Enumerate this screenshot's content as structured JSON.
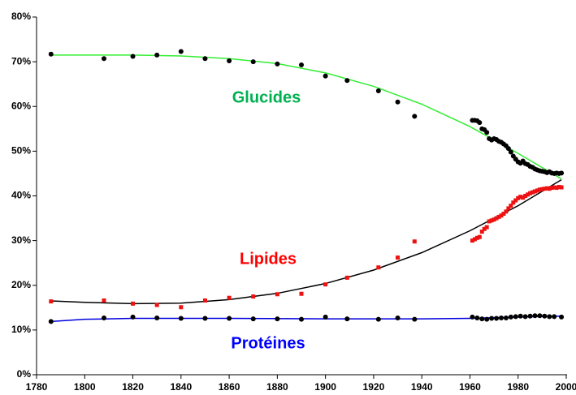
{
  "chart_data": {
    "type": "scatter",
    "xlim": [
      1780,
      2000
    ],
    "ylim": [
      0,
      80
    ],
    "xticks": [
      1780,
      1800,
      1820,
      1840,
      1860,
      1880,
      1900,
      1920,
      1940,
      1960,
      1980,
      2000
    ],
    "yticks": [
      {
        "value": 0,
        "label": "0%"
      },
      {
        "value": 10,
        "label": "10%"
      },
      {
        "value": 20,
        "label": "20%"
      },
      {
        "value": 30,
        "label": "30%"
      },
      {
        "value": 40,
        "label": "40%"
      },
      {
        "value": 50,
        "label": "50%"
      },
      {
        "value": 60,
        "label": "60%"
      },
      {
        "value": 70,
        "label": "70%"
      },
      {
        "value": 80,
        "label": "80%"
      }
    ],
    "grid": false,
    "series": [
      {
        "name": "Glucides",
        "color": "#00b050",
        "marker": "circle",
        "marker_color": "#000000",
        "x": [
          1786,
          1808,
          1820,
          1830,
          1840,
          1850,
          1860,
          1870,
          1880,
          1890,
          1900,
          1909,
          1922,
          1930,
          1937,
          1961,
          1962,
          1963,
          1964,
          1965,
          1966,
          1967,
          1968,
          1969,
          1970,
          1971,
          1972,
          1973,
          1974,
          1975,
          1976,
          1977,
          1978,
          1979,
          1980,
          1981,
          1982,
          1983,
          1984,
          1985,
          1986,
          1987,
          1988,
          1989,
          1990,
          1991,
          1992,
          1993,
          1994,
          1995,
          1996,
          1997,
          1998
        ],
        "values": [
          71.7,
          70.7,
          71.2,
          71.5,
          72.3,
          70.7,
          70.2,
          70.0,
          69.5,
          69.3,
          66.8,
          65.8,
          63.5,
          61.0,
          57.8,
          56.9,
          56.9,
          56.8,
          56.4,
          55.0,
          54.8,
          54.2,
          52.8,
          52.5,
          52.8,
          52.6,
          52.2,
          52.0,
          51.6,
          51.2,
          50.6,
          49.8,
          48.9,
          48.2,
          47.6,
          47.3,
          47.8,
          47.2,
          47.0,
          46.6,
          46.4,
          46.0,
          45.8,
          45.6,
          45.5,
          45.4,
          45.2,
          45.4,
          45.1,
          45.0,
          45.1,
          45.0,
          45.1
        ],
        "fit": {
          "color": "#33ee33",
          "x": [
            1786,
            1800,
            1820,
            1840,
            1860,
            1880,
            1900,
            1920,
            1940,
            1960,
            1980,
            1998
          ],
          "values": [
            71.5,
            71.5,
            71.5,
            71.3,
            70.7,
            69.6,
            67.5,
            64.5,
            60.5,
            55.5,
            49.5,
            43.8
          ]
        }
      },
      {
        "name": "Lipides",
        "color": "#ff0000",
        "marker": "square",
        "marker_color": "#ee1111",
        "x": [
          1786,
          1808,
          1820,
          1830,
          1840,
          1850,
          1860,
          1870,
          1880,
          1890,
          1900,
          1909,
          1922,
          1930,
          1937,
          1961,
          1962,
          1963,
          1964,
          1965,
          1966,
          1967,
          1968,
          1969,
          1970,
          1971,
          1972,
          1973,
          1974,
          1975,
          1976,
          1977,
          1978,
          1979,
          1980,
          1981,
          1982,
          1983,
          1984,
          1985,
          1986,
          1987,
          1988,
          1989,
          1990,
          1991,
          1992,
          1993,
          1994,
          1995,
          1996,
          1997,
          1998
        ],
        "values": [
          16.4,
          16.6,
          15.9,
          15.6,
          15.1,
          16.6,
          17.2,
          17.5,
          18.0,
          18.1,
          20.2,
          21.7,
          24.0,
          26.2,
          29.8,
          30.0,
          30.3,
          30.6,
          30.8,
          32.0,
          32.6,
          33.0,
          34.3,
          34.5,
          34.7,
          35.0,
          35.3,
          35.6,
          36.0,
          36.5,
          37.2,
          37.8,
          38.5,
          39.0,
          39.5,
          39.8,
          39.6,
          40.0,
          40.3,
          40.6,
          40.8,
          41.0,
          41.2,
          41.4,
          41.5,
          41.6,
          41.7,
          41.6,
          41.8,
          41.9,
          41.8,
          42.0,
          41.9
        ],
        "fit": {
          "color": "#000000",
          "x": [
            1786,
            1800,
            1820,
            1840,
            1860,
            1880,
            1900,
            1920,
            1940,
            1960,
            1980,
            1998
          ],
          "values": [
            16.5,
            16.2,
            15.9,
            16.0,
            16.8,
            18.2,
            20.4,
            23.4,
            27.3,
            32.2,
            37.8,
            43.6
          ]
        }
      },
      {
        "name": "Protéines",
        "color": "#0000ff",
        "marker": "circle",
        "marker_color": "#000000",
        "x": [
          1786,
          1808,
          1820,
          1830,
          1840,
          1850,
          1860,
          1870,
          1880,
          1890,
          1900,
          1909,
          1922,
          1930,
          1937,
          1961,
          1963,
          1965,
          1967,
          1969,
          1971,
          1973,
          1975,
          1977,
          1979,
          1981,
          1983,
          1985,
          1987,
          1989,
          1991,
          1993,
          1995,
          1998
        ],
        "values": [
          11.9,
          12.7,
          12.9,
          12.7,
          12.6,
          12.6,
          12.6,
          12.5,
          12.5,
          12.4,
          12.9,
          12.5,
          12.4,
          12.7,
          12.4,
          12.9,
          12.7,
          12.5,
          12.4,
          12.6,
          12.6,
          12.7,
          12.7,
          12.9,
          13.0,
          13.1,
          13.0,
          13.1,
          13.2,
          13.2,
          13.1,
          13.0,
          13.0,
          12.9
        ],
        "fit": {
          "color": "#0000dd",
          "x": [
            1786,
            1800,
            1820,
            1860,
            1900,
            1940,
            1960,
            1980,
            1998
          ],
          "values": [
            11.9,
            12.4,
            12.6,
            12.6,
            12.5,
            12.5,
            12.6,
            12.9,
            13.1
          ]
        }
      }
    ]
  }
}
